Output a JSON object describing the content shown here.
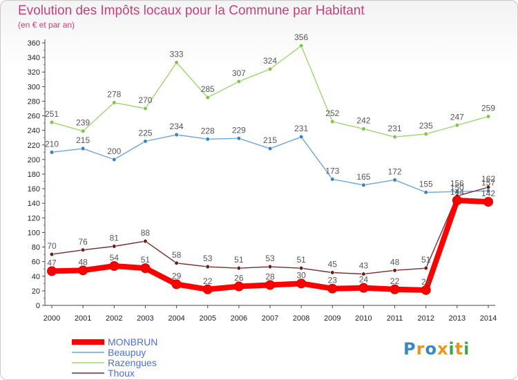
{
  "chart_data": {
    "type": "line",
    "title": "Evolution des Impôts locaux pour la Commune par Habitant",
    "subtitle": "(en € et par an)",
    "xlabel": "",
    "ylabel": "",
    "x": [
      "2000",
      "2001",
      "2002",
      "2003",
      "2004",
      "2005",
      "2006",
      "2007",
      "2008",
      "2009",
      "2010",
      "2011",
      "2012",
      "2013",
      "2014"
    ],
    "ylim": [
      0,
      360
    ],
    "yticks": [
      0,
      20,
      40,
      60,
      80,
      100,
      120,
      140,
      160,
      180,
      200,
      220,
      240,
      260,
      280,
      300,
      320,
      340,
      360
    ],
    "grid": false,
    "legend_position": "bottom-left",
    "series": [
      {
        "name": "MONBRUN",
        "color": "#ff0000",
        "values": [
          47,
          48,
          54,
          51,
          29,
          22,
          26,
          28,
          30,
          23,
          24,
          22,
          21,
          144,
          142
        ]
      },
      {
        "name": "Beaupuy",
        "color": "#6aa7d8",
        "values": [
          210,
          215,
          200,
          225,
          234,
          228,
          229,
          215,
          231,
          173,
          165,
          172,
          155,
          156,
          157
        ]
      },
      {
        "name": "Razengues",
        "color": "#9ed672",
        "values": [
          251,
          239,
          278,
          270,
          333,
          285,
          307,
          324,
          356,
          252,
          242,
          231,
          235,
          247,
          259
        ]
      },
      {
        "name": "Thoux",
        "color": "#7a2a2a",
        "values": [
          70,
          76,
          81,
          88,
          58,
          53,
          51,
          53,
          51,
          45,
          43,
          48,
          51,
          150,
          162
        ]
      }
    ]
  },
  "logo": {
    "letters": [
      {
        "ch": "P",
        "color": "#3a86c8"
      },
      {
        "ch": "r",
        "color": "#e8961e"
      },
      {
        "ch": "o",
        "color": "#3a86c8"
      },
      {
        "ch": "x",
        "color": "#e8961e"
      },
      {
        "ch": "i",
        "color": "#3aa848"
      },
      {
        "ch": "t",
        "color": "#e8961e"
      },
      {
        "ch": "i",
        "color": "#3aa848"
      }
    ]
  }
}
